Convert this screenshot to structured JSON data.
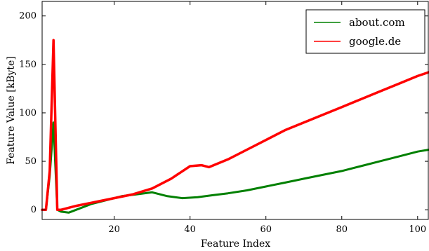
{
  "chart_data": {
    "type": "line",
    "title": "",
    "xlabel": "Feature Index",
    "ylabel": "Feature Value [kByte]",
    "xlim": [
      1,
      103
    ],
    "ylim": [
      -10,
      215
    ],
    "xticks": [
      20,
      40,
      60,
      80,
      100
    ],
    "yticks": [
      0,
      50,
      100,
      150,
      200
    ],
    "grid": false,
    "legend_position": "top-right",
    "colors": {
      "about.com": "#008000",
      "google.de": "#ff0000"
    },
    "series": [
      {
        "name": "about.com",
        "color": "#008000",
        "x": [
          1,
          2,
          3,
          4,
          5,
          6,
          8,
          10,
          14,
          18,
          22,
          26,
          30,
          34,
          38,
          42,
          46,
          50,
          55,
          60,
          65,
          70,
          75,
          80,
          85,
          90,
          95,
          100,
          103
        ],
        "values": [
          0,
          0,
          35,
          90,
          0,
          -2,
          -3,
          0,
          6,
          10,
          14,
          16,
          18,
          14,
          12,
          13,
          15,
          17,
          20,
          24,
          28,
          32,
          36,
          40,
          45,
          50,
          55,
          60,
          62
        ]
      },
      {
        "name": "google.de",
        "color": "#ff0000",
        "x": [
          1,
          2,
          3,
          4,
          5,
          6,
          10,
          15,
          20,
          25,
          30,
          35,
          40,
          43,
          45,
          50,
          55,
          60,
          65,
          70,
          75,
          80,
          85,
          90,
          95,
          100,
          103
        ],
        "values": [
          0,
          0,
          40,
          175,
          0,
          0,
          4,
          8,
          12,
          16,
          22,
          32,
          45,
          46,
          44,
          52,
          62,
          72,
          82,
          90,
          98,
          106,
          114,
          122,
          130,
          138,
          142
        ]
      }
    ]
  }
}
